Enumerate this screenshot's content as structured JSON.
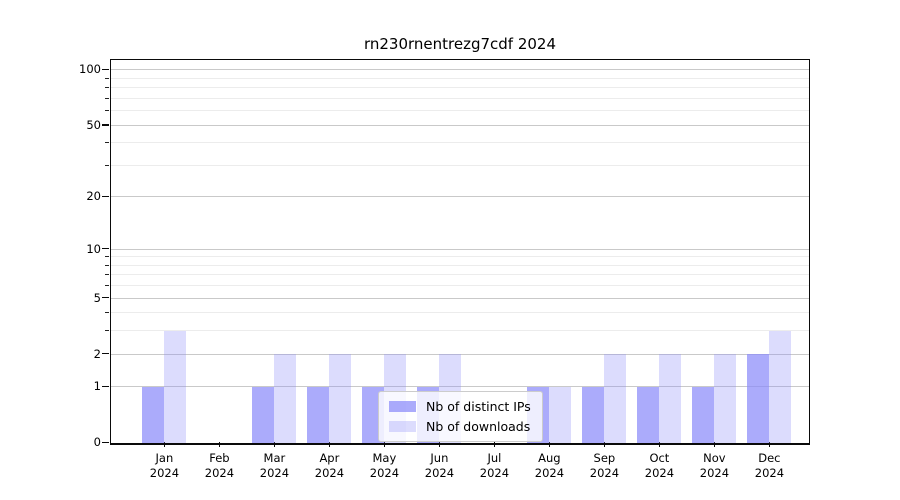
{
  "title": "rn230rnentrezg7cdf 2024",
  "chart_data": {
    "type": "bar",
    "title": "rn230rnentrezg7cdf 2024",
    "categories": [
      "Jan",
      "Feb",
      "Mar",
      "Apr",
      "May",
      "Jun",
      "Jul",
      "Aug",
      "Sep",
      "Oct",
      "Nov",
      "Dec"
    ],
    "x_tick_second_line": "2024",
    "series": [
      {
        "name": "Nb of distinct IPs",
        "color": "rgba(138,138,250,0.72)",
        "values": [
          1,
          0,
          1,
          1,
          1,
          1,
          0,
          1,
          1,
          1,
          1,
          2
        ]
      },
      {
        "name": "Nb of downloads",
        "color": "rgba(138,138,250,0.30)",
        "values": [
          3,
          0,
          2,
          2,
          2,
          2,
          0,
          1,
          2,
          2,
          2,
          3
        ]
      }
    ],
    "y_scale": "log1p",
    "y_major_ticks": [
      0,
      1,
      2,
      5,
      10,
      20,
      50,
      100
    ],
    "y_minor_ticks": [
      3,
      4,
      6,
      7,
      8,
      9,
      30,
      40,
      60,
      70,
      80,
      90
    ],
    "ylim": [
      0,
      112
    ],
    "xlabel": "",
    "ylabel": "",
    "grid": true,
    "legend_position": "lower center",
    "colors": {
      "axis": "#0a0a0a",
      "grid_major": "#c9c9c9",
      "grid_minor": "#ececec",
      "background": "#ffffff"
    }
  }
}
